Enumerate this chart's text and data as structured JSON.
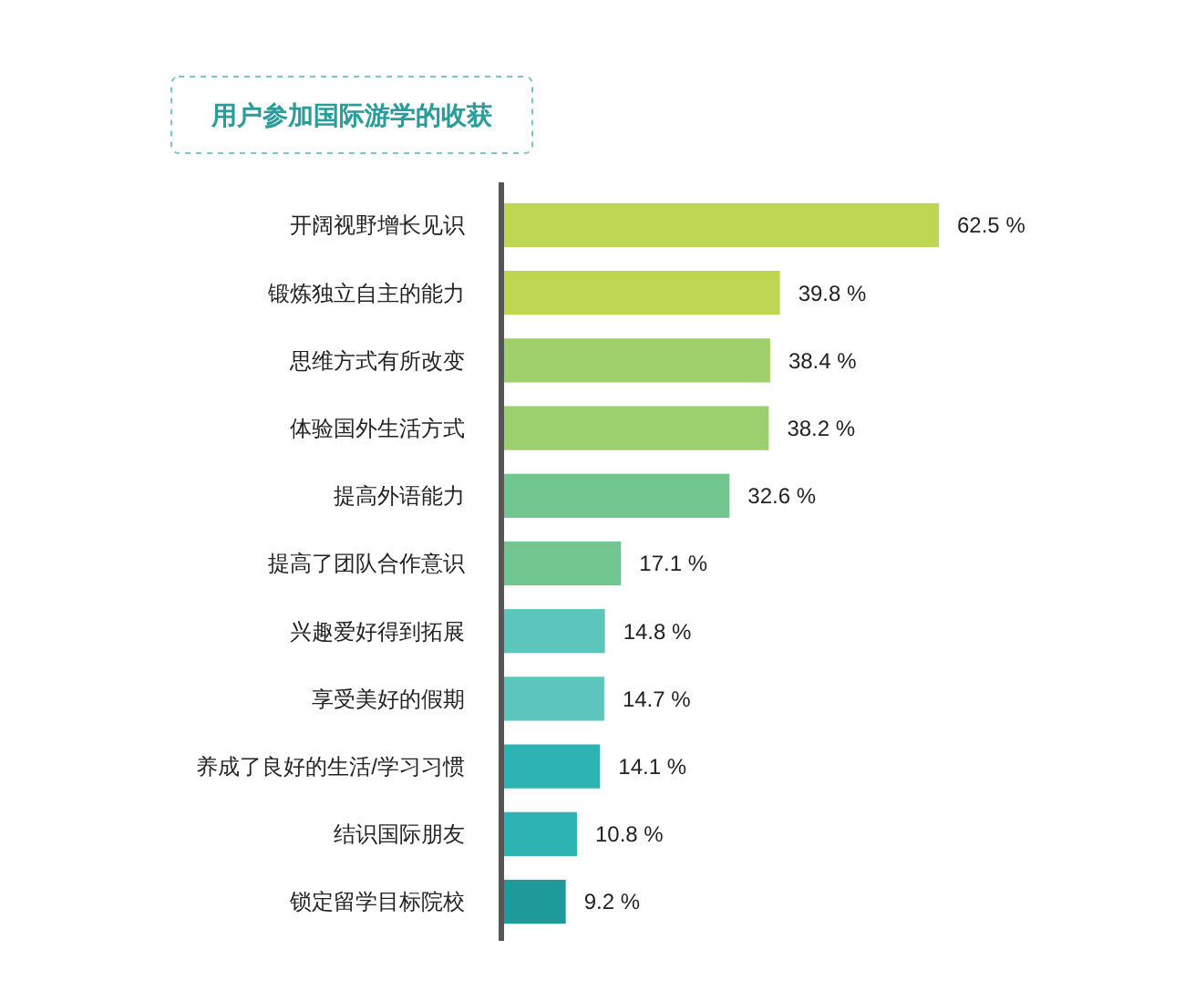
{
  "chart_data": {
    "type": "bar",
    "orientation": "horizontal",
    "title": "用户参加国际游学的收获",
    "categories": [
      "开阔视野增长见识",
      "锻炼独立自主的能力",
      "思维方式有所改变",
      "体验国外生活方式",
      "提高外语能力",
      "提高了团队合作意识",
      "兴趣爱好得到拓展",
      "享受美好的假期",
      "养成了良好的生活/学习习惯",
      "结识国际朋友",
      "锁定留学目标院校"
    ],
    "values": [
      62.5,
      39.8,
      38.4,
      38.2,
      32.6,
      17.1,
      14.8,
      14.7,
      14.1,
      10.8,
      9.2
    ],
    "value_labels": [
      "62.5 %",
      "39.8 %",
      "38.4 %",
      "38.2 %",
      "32.6 %",
      "17.1 %",
      "14.8 %",
      "14.7 %",
      "14.1 %",
      "10.8 %",
      "9.2 %"
    ],
    "colors": [
      "#bdd752",
      "#bdd752",
      "#a0d06c",
      "#9ccf6e",
      "#72c690",
      "#72c690",
      "#5cc6bd",
      "#5cc6bd",
      "#2cb3b2",
      "#2cb3b2",
      "#1f9a9a"
    ]
  }
}
